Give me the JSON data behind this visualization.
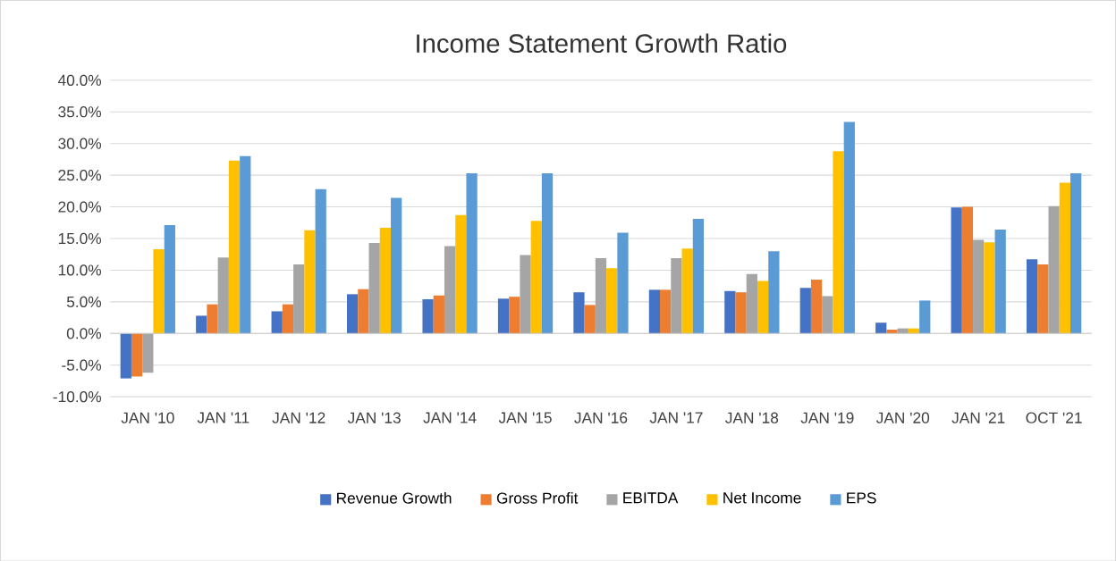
{
  "chart_data": {
    "type": "bar",
    "title": "Income Statement Growth Ratio",
    "categories": [
      "JAN '10",
      "JAN '11",
      "JAN '12",
      "JAN '13",
      "JAN '14",
      "JAN '15",
      "JAN '16",
      "JAN '17",
      "JAN '18",
      "JAN '19",
      "JAN '20",
      "JAN '21",
      "OCT '21"
    ],
    "series": [
      {
        "name": "Revenue Growth",
        "color": "#4472c4",
        "values": [
          -7.1,
          2.8,
          3.5,
          6.2,
          5.4,
          5.5,
          6.5,
          6.9,
          6.7,
          7.2,
          1.7,
          19.9,
          11.7
        ]
      },
      {
        "name": "Gross Profit",
        "color": "#ed7d31",
        "values": [
          -6.8,
          4.6,
          4.6,
          7.0,
          6.0,
          5.8,
          4.5,
          6.9,
          6.5,
          8.5,
          0.6,
          20.0,
          10.9
        ]
      },
      {
        "name": "EBITDA",
        "color": "#a5a5a5",
        "values": [
          -6.2,
          12.0,
          10.9,
          14.3,
          13.8,
          12.4,
          11.9,
          11.9,
          9.4,
          5.9,
          0.8,
          14.8,
          20.1
        ]
      },
      {
        "name": "Net Income",
        "color": "#ffc000",
        "values": [
          13.3,
          27.3,
          16.3,
          16.7,
          18.7,
          17.8,
          10.3,
          13.4,
          8.3,
          28.8,
          0.8,
          14.4,
          23.8
        ]
      },
      {
        "name": "EPS",
        "color": "#5b9bd5",
        "values": [
          17.1,
          28.0,
          22.8,
          21.4,
          25.3,
          25.3,
          15.9,
          18.1,
          13.0,
          33.4,
          5.2,
          16.4,
          25.3
        ]
      }
    ],
    "ylim": [
      -10,
      40
    ],
    "yticks": [
      {
        "value": -10,
        "label": "-10.0%"
      },
      {
        "value": -5,
        "label": "-5.0%"
      },
      {
        "value": 0,
        "label": "0.0%"
      },
      {
        "value": 5,
        "label": "5.0%"
      },
      {
        "value": 10,
        "label": "10.0%"
      },
      {
        "value": 15,
        "label": "15.0%"
      },
      {
        "value": 20,
        "label": "20.0%"
      },
      {
        "value": 25,
        "label": "25.0%"
      },
      {
        "value": 30,
        "label": "30.0%"
      },
      {
        "value": 35,
        "label": "35.0%"
      },
      {
        "value": 40,
        "label": "40.0%"
      }
    ],
    "grid": "y",
    "legend": "bottom"
  }
}
